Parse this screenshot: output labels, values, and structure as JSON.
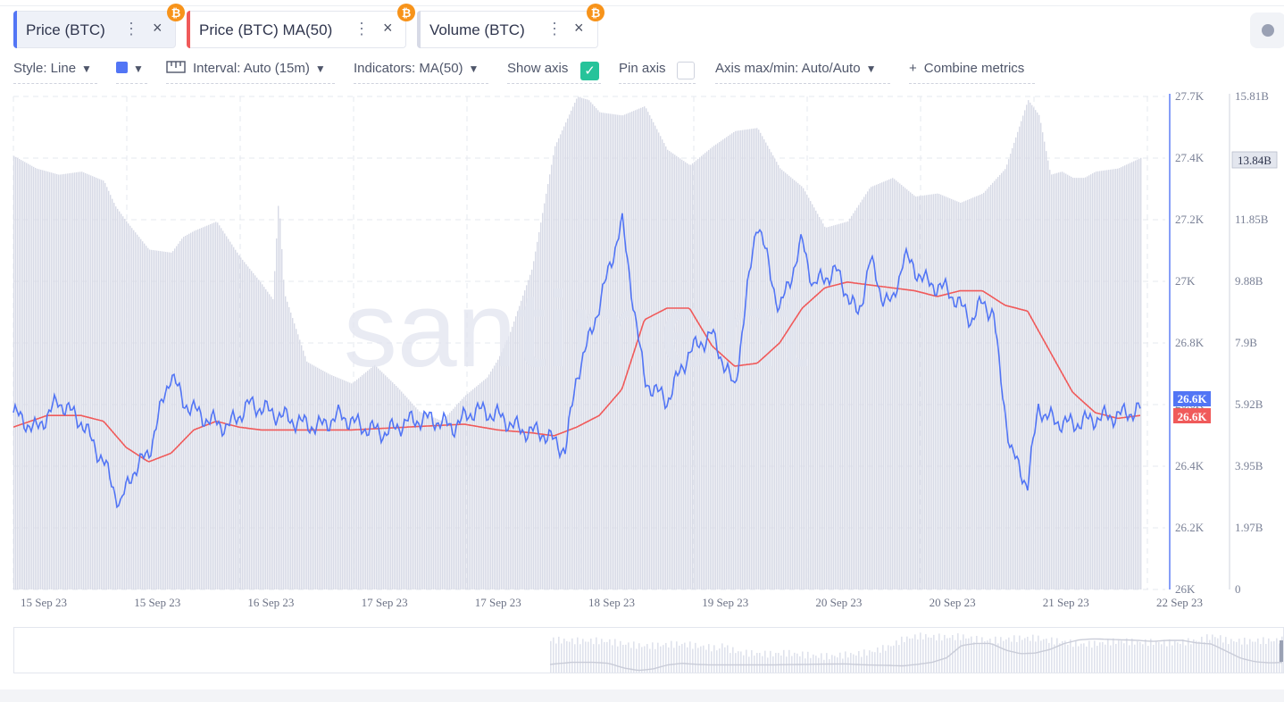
{
  "tabs": [
    {
      "label": "Price (BTC)",
      "color": "#5275f5",
      "active": true,
      "coin_icon": "bitcoin-icon"
    },
    {
      "label": "Price (BTC) MA(50)",
      "color": "#f05a5a",
      "active": false,
      "coin_icon": "bitcoin-icon"
    },
    {
      "label": "Volume (BTC)",
      "color": "#d7dae6",
      "active": false,
      "coin_icon": "bitcoin-icon"
    }
  ],
  "toolbar": {
    "style": "Style: Line",
    "interval": "Interval: Auto (15m)",
    "indicators": "Indicators: MA(50)",
    "show_axis": "Show axis",
    "show_axis_checked": true,
    "pin_axis": "Pin axis",
    "pin_axis_checked": false,
    "axis_maxmin": "Axis max/min: Auto/Auto",
    "combine": "Combine metrics",
    "color": "#5275f5"
  },
  "colors": {
    "price": "#5275f5",
    "ma": "#f05a5a",
    "volume": "#d7dae6",
    "accent_green": "#26c39a",
    "bitcoin": "#f7931a"
  },
  "chart_data": {
    "type": "line",
    "watermark": "santiment",
    "x_tick_labels": [
      "15 Sep 23",
      "15 Sep 23",
      "16 Sep 23",
      "17 Sep 23",
      "17 Sep 23",
      "18 Sep 23",
      "19 Sep 23",
      "20 Sep 23",
      "20 Sep 23",
      "21 Sep 23",
      "22 Sep 23"
    ],
    "price_axis": {
      "ticks": [
        "27.7K",
        "27.4K",
        "27.2K",
        "27K",
        "26.8K",
        "26.6K",
        "26.4K",
        "26.2K",
        "26K"
      ],
      "ylim": [
        26000,
        27700
      ]
    },
    "volume_axis": {
      "ticks": [
        "15.81B",
        "13.84B",
        "11.85B",
        "9.88B",
        "7.9B",
        "5.92B",
        "3.95B",
        "1.97B",
        "0"
      ],
      "ylim": [
        0,
        15.81
      ]
    },
    "last_values": {
      "price": "26.6K",
      "ma": "26.6K",
      "volume": "13.84B"
    },
    "series": [
      {
        "name": "Price (BTC)",
        "axis": "price",
        "x": [
          0,
          0.02,
          0.04,
          0.06,
          0.08,
          0.095,
          0.105,
          0.12,
          0.14,
          0.15,
          0.17,
          0.19,
          0.21,
          0.23,
          0.25,
          0.27,
          0.29,
          0.31,
          0.33,
          0.35,
          0.37,
          0.39,
          0.41,
          0.43,
          0.45,
          0.47,
          0.49,
          0.5,
          0.51,
          0.525,
          0.54,
          0.56,
          0.58,
          0.6,
          0.62,
          0.64,
          0.66,
          0.68,
          0.7,
          0.71,
          0.73,
          0.75,
          0.76,
          0.77,
          0.78,
          0.79,
          0.81,
          0.83,
          0.85,
          0.86,
          0.87,
          0.875,
          0.885,
          0.9,
          0.91,
          0.915,
          0.925,
          0.94,
          0.96,
          0.98,
          1.0
        ],
        "values": [
          26610,
          26550,
          26650,
          26580,
          26440,
          26290,
          26400,
          26470,
          26750,
          26650,
          26590,
          26560,
          26640,
          26610,
          26580,
          26560,
          26600,
          26560,
          26540,
          26580,
          26590,
          26560,
          26620,
          26600,
          26550,
          26540,
          26480,
          26740,
          26850,
          27050,
          27270,
          26720,
          26650,
          26820,
          26880,
          26690,
          27280,
          26960,
          27200,
          27050,
          27100,
          26940,
          27140,
          27020,
          26980,
          27150,
          27060,
          27030,
          26930,
          26990,
          26950,
          26760,
          26480,
          26360,
          26640,
          26600,
          26580,
          26570,
          26590,
          26600,
          26620
        ]
      },
      {
        "name": "Price (BTC) MA(50)",
        "axis": "price",
        "x": [
          0,
          0.03,
          0.06,
          0.08,
          0.1,
          0.12,
          0.14,
          0.16,
          0.18,
          0.2,
          0.22,
          0.25,
          0.3,
          0.35,
          0.4,
          0.43,
          0.46,
          0.48,
          0.5,
          0.52,
          0.54,
          0.56,
          0.58,
          0.6,
          0.62,
          0.64,
          0.66,
          0.68,
          0.7,
          0.72,
          0.74,
          0.76,
          0.78,
          0.8,
          0.82,
          0.84,
          0.86,
          0.88,
          0.9,
          0.92,
          0.94,
          0.96,
          0.98,
          1.0
        ],
        "values": [
          26560,
          26600,
          26600,
          26580,
          26490,
          26440,
          26470,
          26550,
          26580,
          26560,
          26550,
          26550,
          26550,
          26560,
          26570,
          26550,
          26540,
          26530,
          26560,
          26600,
          26690,
          26930,
          26970,
          26970,
          26840,
          26770,
          26780,
          26850,
          26970,
          27040,
          27060,
          27050,
          27040,
          27030,
          27010,
          27030,
          27030,
          26980,
          26960,
          26820,
          26680,
          26610,
          26590,
          26600
        ]
      },
      {
        "name": "Volume (BTC)",
        "axis": "volume",
        "x": [
          0,
          0.02,
          0.04,
          0.06,
          0.08,
          0.09,
          0.1,
          0.12,
          0.14,
          0.15,
          0.16,
          0.18,
          0.2,
          0.22,
          0.23,
          0.235,
          0.24,
          0.26,
          0.28,
          0.3,
          0.32,
          0.34,
          0.36,
          0.38,
          0.4,
          0.42,
          0.43,
          0.44,
          0.46,
          0.48,
          0.5,
          0.51,
          0.52,
          0.54,
          0.56,
          0.58,
          0.6,
          0.62,
          0.64,
          0.66,
          0.68,
          0.7,
          0.72,
          0.74,
          0.76,
          0.78,
          0.8,
          0.82,
          0.84,
          0.86,
          0.88,
          0.9,
          0.91,
          0.92,
          0.93,
          0.94,
          0.95,
          0.96,
          0.98,
          1.0
        ],
        "values": [
          13.9,
          13.5,
          13.3,
          13.4,
          13.1,
          12.3,
          11.8,
          10.9,
          10.8,
          11.3,
          11.5,
          11.8,
          10.7,
          9.8,
          9.3,
          12.6,
          9.5,
          7.3,
          6.9,
          6.6,
          7.2,
          6.5,
          5.7,
          5.4,
          6.2,
          6.8,
          7.4,
          8.2,
          10.3,
          14.2,
          15.8,
          15.7,
          15.3,
          15.2,
          15.5,
          14.1,
          13.6,
          14.2,
          14.7,
          14.8,
          13.5,
          12.9,
          11.6,
          11.8,
          12.9,
          13.2,
          12.6,
          12.7,
          12.4,
          12.7,
          13.5,
          15.7,
          15.2,
          13.3,
          13.4,
          13.2,
          13.2,
          13.4,
          13.5,
          13.84
        ]
      }
    ]
  }
}
